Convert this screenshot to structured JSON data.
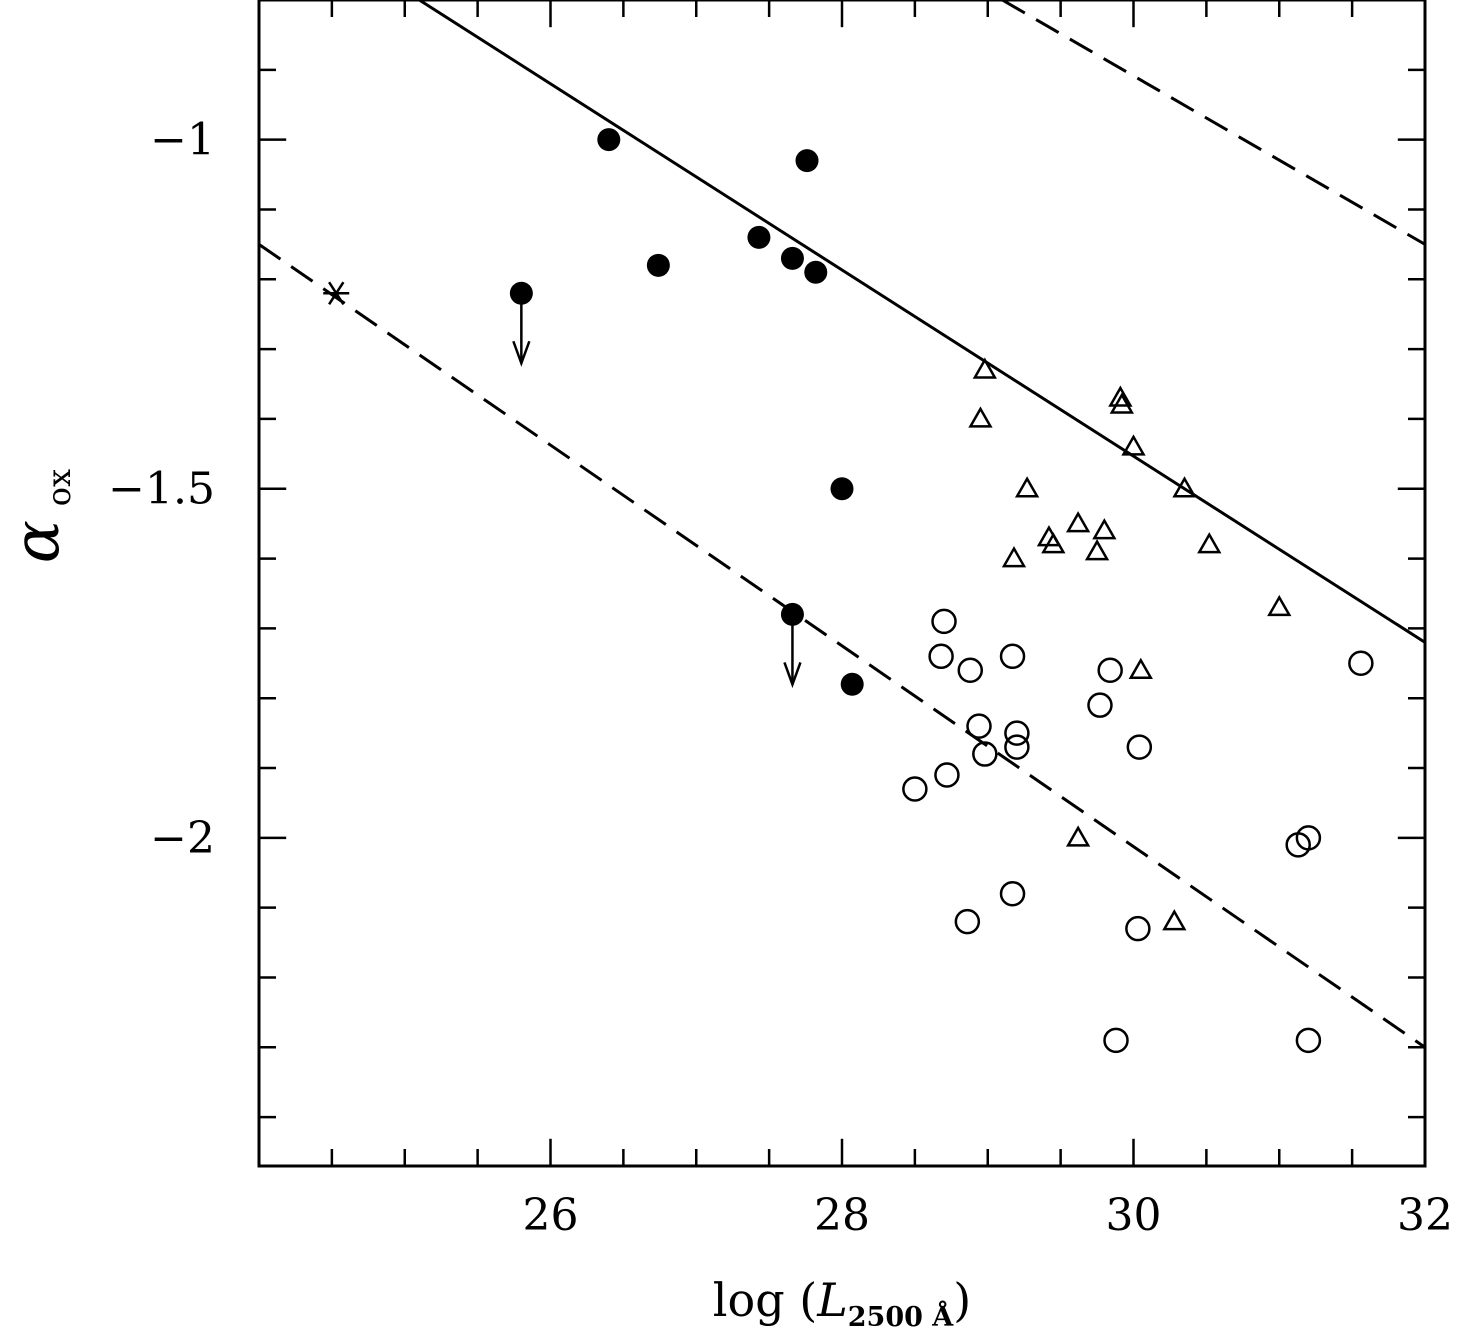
{
  "chart_data": {
    "type": "scatter",
    "xlabel": {
      "prefix": "log (",
      "symbol": "L",
      "subscript": "2500 Å",
      "suffix": ")"
    },
    "ylabel": {
      "symbol": "α",
      "subscript": "ox"
    },
    "xlim": [
      24,
      32
    ],
    "ylim": [
      -2.47,
      -0.8
    ],
    "x_ticks_major": [
      26,
      28,
      30,
      32
    ],
    "x_tick_labels": [
      "26",
      "28",
      "30",
      "32"
    ],
    "y_ticks_major": [
      -1,
      -1.5,
      -2
    ],
    "y_tick_labels": [
      "−1",
      "−1.5",
      "−2"
    ],
    "colors": {
      "axis": "#000000",
      "marker": "#000000",
      "background": "#ffffff"
    },
    "lines": [
      {
        "name": "solid-relation",
        "style": "solid",
        "points": [
          [
            25.1,
            -0.8
          ],
          [
            32.0,
            -1.72
          ]
        ]
      },
      {
        "name": "dashed-relation-upper",
        "style": "dashed",
        "points": [
          [
            29.1,
            -0.8
          ],
          [
            32.0,
            -1.15
          ]
        ]
      },
      {
        "name": "dashed-relation-lower",
        "style": "dashed",
        "points": [
          [
            24.0,
            -1.15
          ],
          [
            32.0,
            -2.3
          ]
        ]
      }
    ],
    "series": [
      {
        "name": "filled-circles",
        "marker": "filled-circle",
        "points": [
          [
            26.4,
            -1.0
          ],
          [
            27.76,
            -1.03
          ],
          [
            27.43,
            -1.14
          ],
          [
            26.74,
            -1.18
          ],
          [
            27.66,
            -1.17
          ],
          [
            27.82,
            -1.19
          ],
          [
            25.8,
            -1.22
          ],
          [
            28.0,
            -1.5
          ],
          [
            27.66,
            -1.68
          ],
          [
            28.07,
            -1.78
          ]
        ]
      },
      {
        "name": "upper-limits",
        "marker": "arrow-down",
        "points": [
          [
            25.8,
            -1.22
          ],
          [
            27.66,
            -1.68
          ]
        ]
      },
      {
        "name": "triangles",
        "marker": "open-triangle",
        "points": [
          [
            28.98,
            -1.33
          ],
          [
            28.95,
            -1.4
          ],
          [
            29.91,
            -1.37
          ],
          [
            29.92,
            -1.38
          ],
          [
            30.0,
            -1.44
          ],
          [
            29.27,
            -1.5
          ],
          [
            30.35,
            -1.5
          ],
          [
            29.62,
            -1.55
          ],
          [
            29.42,
            -1.57
          ],
          [
            29.45,
            -1.58
          ],
          [
            29.8,
            -1.56
          ],
          [
            29.75,
            -1.59
          ],
          [
            30.52,
            -1.58
          ],
          [
            29.18,
            -1.6
          ],
          [
            31.0,
            -1.67
          ],
          [
            30.05,
            -1.76
          ],
          [
            29.62,
            -2.0
          ],
          [
            30.28,
            -2.12
          ]
        ]
      },
      {
        "name": "open-circles",
        "marker": "open-circle",
        "points": [
          [
            28.7,
            -1.69
          ],
          [
            28.68,
            -1.74
          ],
          [
            28.88,
            -1.76
          ],
          [
            29.17,
            -1.74
          ],
          [
            29.84,
            -1.76
          ],
          [
            31.56,
            -1.75
          ],
          [
            28.94,
            -1.84
          ],
          [
            29.2,
            -1.85
          ],
          [
            29.77,
            -1.81
          ],
          [
            28.98,
            -1.88
          ],
          [
            29.2,
            -1.87
          ],
          [
            30.04,
            -1.87
          ],
          [
            28.72,
            -1.91
          ],
          [
            28.5,
            -1.93
          ],
          [
            31.13,
            -2.01
          ],
          [
            31.2,
            -2.0
          ],
          [
            29.17,
            -2.08
          ],
          [
            28.86,
            -2.12
          ],
          [
            30.03,
            -2.13
          ],
          [
            29.88,
            -2.29
          ],
          [
            31.2,
            -2.29
          ]
        ]
      },
      {
        "name": "star",
        "marker": "asterisk",
        "points": [
          [
            24.53,
            -1.22
          ]
        ]
      }
    ]
  }
}
